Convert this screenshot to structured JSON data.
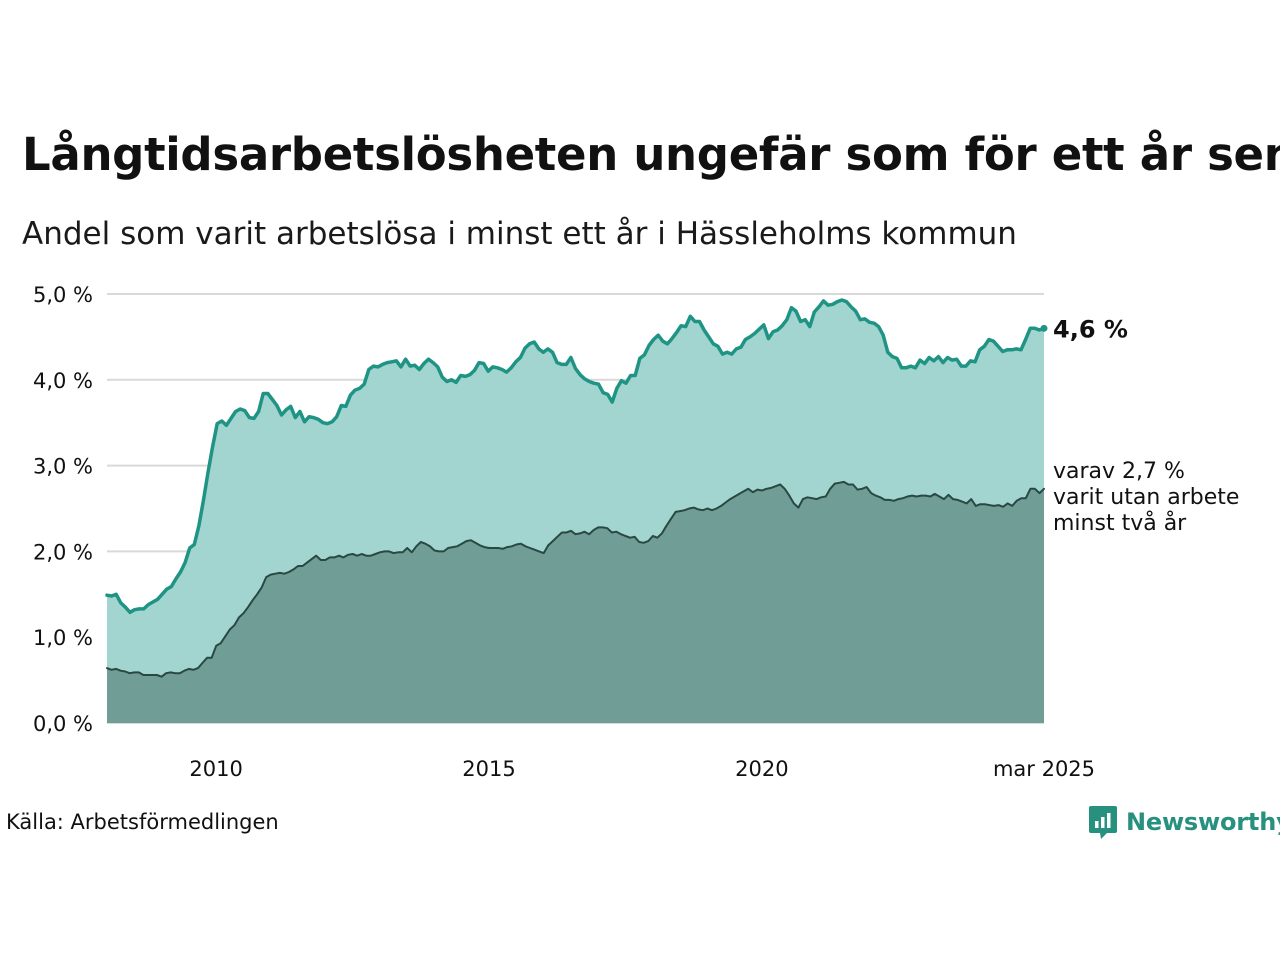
{
  "title": "Långtidsarbetslösheten ungefär som för ett år sen",
  "subtitle": "Andel som varit arbetslösa i minst ett år i Hässleholms kommun",
  "source": "Källa: Arbetsförmedlingen",
  "brand": {
    "name": "Newsworthy",
    "icon": "newsworthy-logo-icon",
    "color": "#27907f"
  },
  "chart_data": {
    "type": "area",
    "title": "Långtidsarbetslösheten ungefär som för ett år sen",
    "subtitle": "Andel som varit arbetslösa i minst ett år i Hässleholms kommun",
    "xlabel": "",
    "ylabel": "",
    "ylim": [
      0,
      5
    ],
    "yticks": [
      "0,0 %",
      "1,0 %",
      "2,0 %",
      "3,0 %",
      "4,0 %",
      "5,0 %"
    ],
    "xticks": [
      {
        "value": 2010,
        "label": "2010"
      },
      {
        "value": 2015,
        "label": "2015"
      },
      {
        "value": 2020,
        "label": "2020"
      },
      {
        "value": 2025.17,
        "label": "mar 2025"
      }
    ],
    "x_start": 2008.0,
    "x_end": 2025.17,
    "grid": true,
    "legend": "end-labels",
    "series": [
      {
        "name": "",
        "end_label": "4,6 %",
        "color": "#1f9484",
        "fill": "#a2d5cf",
        "values": [
          1.49,
          1.48,
          1.5,
          1.4,
          1.35,
          1.29,
          1.32,
          1.33,
          1.33,
          1.38,
          1.41,
          1.44,
          1.5,
          1.56,
          1.59,
          1.68,
          1.76,
          1.87,
          2.04,
          2.08,
          2.3,
          2.6,
          2.92,
          3.22,
          3.49,
          3.52,
          3.47,
          3.55,
          3.63,
          3.66,
          3.64,
          3.56,
          3.55,
          3.63,
          3.84,
          3.84,
          3.77,
          3.7,
          3.59,
          3.65,
          3.69,
          3.56,
          3.63,
          3.51,
          3.57,
          3.56,
          3.54,
          3.5,
          3.49,
          3.51,
          3.57,
          3.7,
          3.69,
          3.82,
          3.88,
          3.9,
          3.95,
          4.12,
          4.16,
          4.15,
          4.18,
          4.2,
          4.21,
          4.22,
          4.15,
          4.24,
          4.16,
          4.17,
          4.12,
          4.19,
          4.24,
          4.2,
          4.15,
          4.03,
          3.98,
          4.0,
          3.97,
          4.05,
          4.04,
          4.06,
          4.11,
          4.2,
          4.19,
          4.1,
          4.15,
          4.14,
          4.12,
          4.09,
          4.14,
          4.21,
          4.26,
          4.37,
          4.42,
          4.44,
          4.36,
          4.32,
          4.36,
          4.32,
          4.2,
          4.18,
          4.18,
          4.26,
          4.13,
          4.06,
          4.01,
          3.98,
          3.96,
          3.95,
          3.85,
          3.83,
          3.74,
          3.9,
          3.99,
          3.96,
          4.05,
          4.05,
          4.25,
          4.29,
          4.4,
          4.47,
          4.52,
          4.45,
          4.42,
          4.48,
          4.55,
          4.63,
          4.62,
          4.74,
          4.68,
          4.68,
          4.58,
          4.5,
          4.42,
          4.39,
          4.3,
          4.32,
          4.3,
          4.36,
          4.38,
          4.47,
          4.5,
          4.54,
          4.59,
          4.64,
          4.48,
          4.56,
          4.58,
          4.63,
          4.7,
          4.84,
          4.8,
          4.68,
          4.7,
          4.62,
          4.79,
          4.85,
          4.92,
          4.87,
          4.88,
          4.91,
          4.93,
          4.91,
          4.85,
          4.8,
          4.7,
          4.71,
          4.67,
          4.66,
          4.62,
          4.52,
          4.32,
          4.27,
          4.25,
          4.14,
          4.14,
          4.16,
          4.14,
          4.23,
          4.19,
          4.26,
          4.22,
          4.27,
          4.2,
          4.26,
          4.23,
          4.24,
          4.16,
          4.16,
          4.22,
          4.21,
          4.35,
          4.39,
          4.47,
          4.45,
          4.39,
          4.33,
          4.35,
          4.35,
          4.36,
          4.35,
          4.47,
          4.6,
          4.6,
          4.58,
          4.6
        ]
      },
      {
        "name": "",
        "end_label": [
          "varav 2,7 %",
          "varit utan arbete",
          "minst två år"
        ],
        "color": "#2a4842",
        "fill": "#709e96",
        "values": [
          0.64,
          0.62,
          0.63,
          0.61,
          0.6,
          0.58,
          0.59,
          0.59,
          0.56,
          0.56,
          0.56,
          0.56,
          0.54,
          0.58,
          0.59,
          0.58,
          0.58,
          0.61,
          0.63,
          0.62,
          0.64,
          0.7,
          0.76,
          0.76,
          0.9,
          0.93,
          1.01,
          1.09,
          1.14,
          1.23,
          1.28,
          1.35,
          1.43,
          1.5,
          1.58,
          1.7,
          1.73,
          1.74,
          1.75,
          1.74,
          1.76,
          1.79,
          1.83,
          1.83,
          1.87,
          1.91,
          1.95,
          1.9,
          1.9,
          1.93,
          1.93,
          1.95,
          1.93,
          1.96,
          1.97,
          1.95,
          1.97,
          1.95,
          1.95,
          1.97,
          1.99,
          2.0,
          2.0,
          1.98,
          1.99,
          1.99,
          2.04,
          1.99,
          2.06,
          2.11,
          2.09,
          2.06,
          2.01,
          2.0,
          2.0,
          2.04,
          2.05,
          2.06,
          2.09,
          2.12,
          2.13,
          2.1,
          2.07,
          2.05,
          2.04,
          2.04,
          2.04,
          2.03,
          2.05,
          2.06,
          2.08,
          2.09,
          2.06,
          2.04,
          2.02,
          2.0,
          1.98,
          2.07,
          2.12,
          2.17,
          2.22,
          2.22,
          2.24,
          2.2,
          2.21,
          2.23,
          2.2,
          2.25,
          2.28,
          2.28,
          2.27,
          2.22,
          2.23,
          2.2,
          2.18,
          2.16,
          2.17,
          2.11,
          2.1,
          2.12,
          2.18,
          2.16,
          2.21,
          2.3,
          2.38,
          2.46,
          2.47,
          2.48,
          2.5,
          2.51,
          2.49,
          2.48,
          2.5,
          2.48,
          2.5,
          2.53,
          2.57,
          2.61,
          2.64,
          2.67,
          2.7,
          2.73,
          2.69,
          2.72,
          2.71,
          2.73,
          2.74,
          2.76,
          2.78,
          2.73,
          2.65,
          2.56,
          2.51,
          2.61,
          2.63,
          2.62,
          2.61,
          2.63,
          2.64,
          2.73,
          2.79,
          2.8,
          2.81,
          2.78,
          2.78,
          2.72,
          2.73,
          2.75,
          2.68,
          2.65,
          2.63,
          2.6,
          2.6,
          2.59,
          2.61,
          2.62,
          2.64,
          2.65,
          2.64,
          2.65,
          2.65,
          2.64,
          2.67,
          2.64,
          2.61,
          2.66,
          2.61,
          2.6,
          2.58,
          2.56,
          2.61,
          2.53,
          2.55,
          2.55,
          2.54,
          2.53,
          2.54,
          2.52,
          2.56,
          2.53,
          2.59,
          2.62,
          2.62,
          2.73,
          2.73,
          2.68,
          2.73
        ]
      }
    ]
  }
}
